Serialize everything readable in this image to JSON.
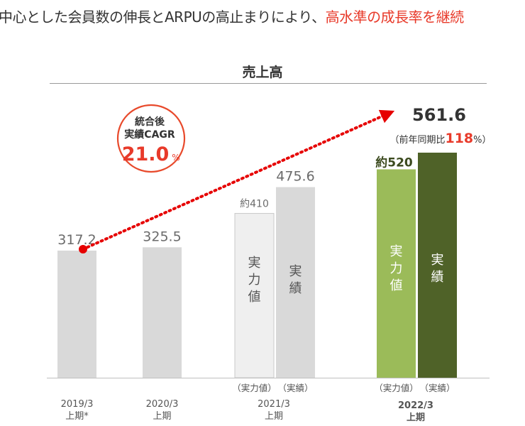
{
  "headline": {
    "part1": "中心とした会員数の伸長とARPUの高止まりにより、",
    "part2": "高水準の成長率を継続"
  },
  "colors": {
    "bar_gray": "#d9d9d9",
    "bar_light": "#efefef",
    "bar_light_stroke": "#c8c8c8",
    "bar_green_light": "#9bbb59",
    "bar_green_dark": "#4f6228",
    "accent_red": "#e83a2a"
  },
  "cagr_badge": {
    "line1": "統合後",
    "line2": "実績CAGR",
    "value": "21.0",
    "unit": "%"
  },
  "highlight": {
    "value": "561.6",
    "comparison_prefix": "（前年同期比",
    "comparison_value": "118",
    "comparison_suffix": "%）"
  },
  "chart_data": {
    "type": "bar",
    "title": "売上高",
    "categories": [
      {
        "line1": "2019/3",
        "line2": "上期*",
        "bold": false
      },
      {
        "line1": "2020/3",
        "line2": "上期",
        "bold": false
      },
      {
        "line1": "2021/3",
        "line2": "上期",
        "bold": false
      },
      {
        "line1": "2022/3",
        "line2": "上期",
        "bold": true
      }
    ],
    "bars": [
      {
        "category": 0,
        "value": 317.2,
        "label": "317.2",
        "style": "gray"
      },
      {
        "category": 1,
        "value": 325.5,
        "label": "325.5",
        "style": "gray"
      },
      {
        "category": 2,
        "value": 410,
        "label": "約410",
        "style": "light",
        "inner_label": "実力値",
        "sub_label": "（実力値）"
      },
      {
        "category": 2,
        "value": 475.6,
        "label": "475.6",
        "style": "gray",
        "inner_label": "実績",
        "sub_label": "（実績）"
      },
      {
        "category": 3,
        "value": 520,
        "label": "約520",
        "style": "green_light",
        "inner_label": "実力値",
        "sub_label": "（実力値）"
      },
      {
        "category": 3,
        "value": 561.6,
        "label": "",
        "style": "green_dark",
        "inner_label": "実績",
        "sub_label": "（実績）"
      }
    ],
    "ylim": [
      0,
      600
    ],
    "xlabel": "",
    "ylabel": "",
    "trend_arrow": {
      "from_value": 317.2,
      "to_value": 561.6
    }
  }
}
